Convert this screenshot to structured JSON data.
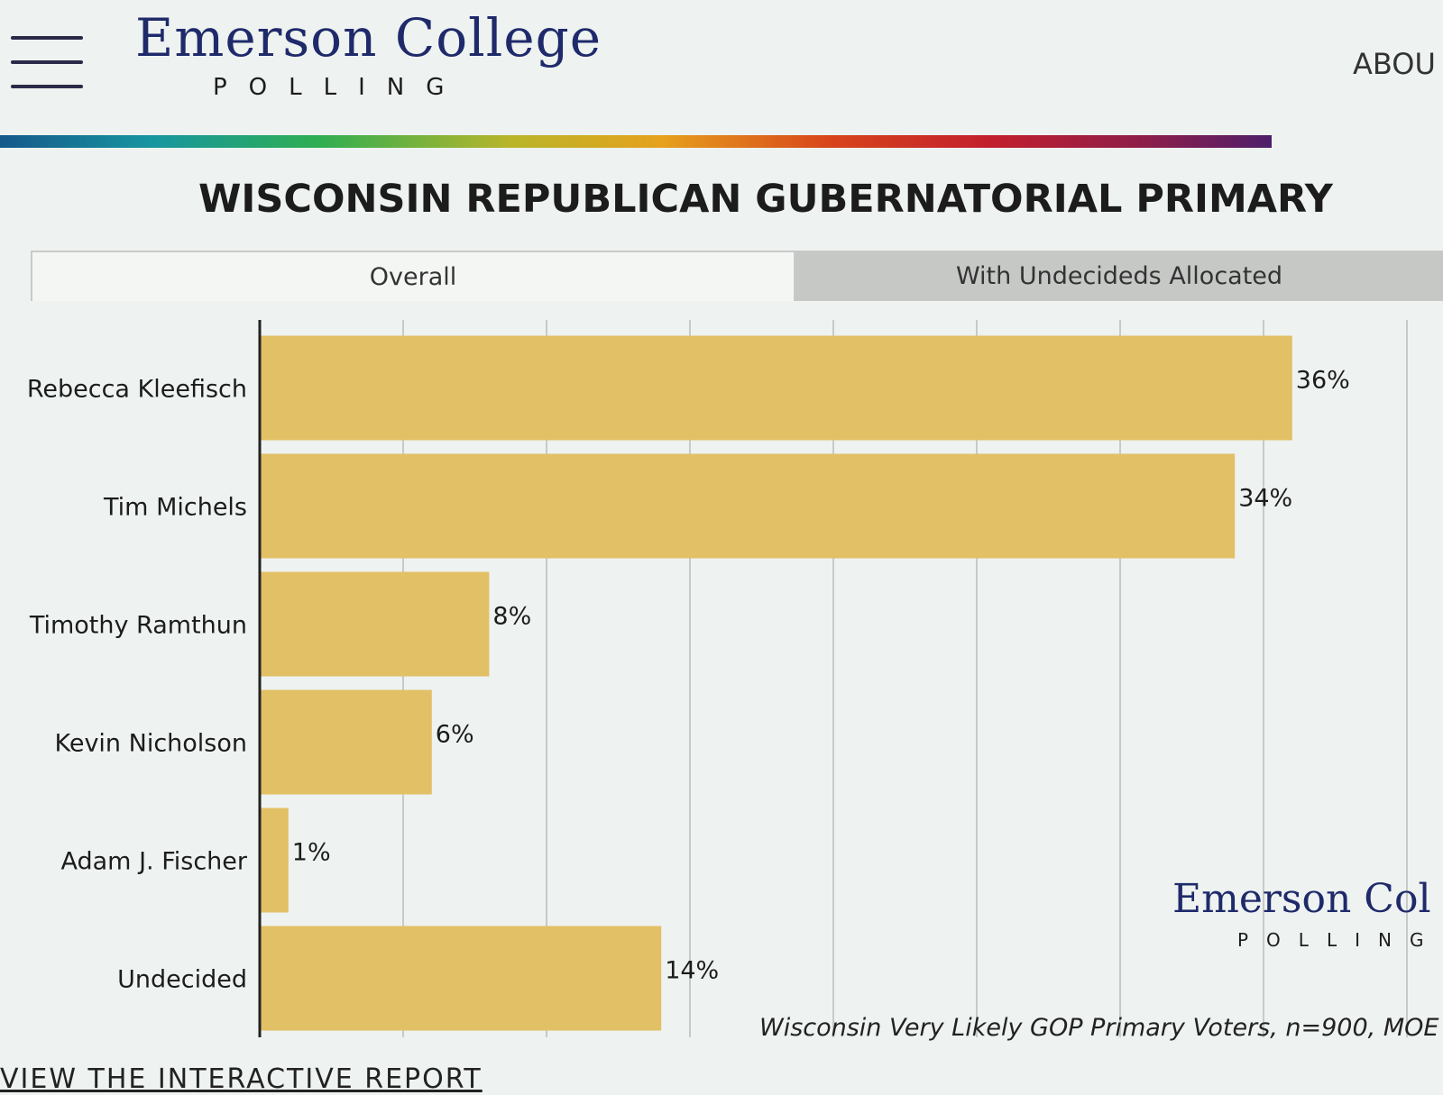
{
  "header": {
    "brand_name": "Emerson College",
    "brand_sub": "POLLING",
    "about_label": "ABOU",
    "menu_icon": "hamburger-menu-icon"
  },
  "tabs": {
    "overall": "Overall",
    "allocated": "With Undecideds Allocated",
    "active": "overall"
  },
  "footer": {
    "brand_name": "Emerson Col",
    "brand_sub": "POLLING",
    "sample_note": "Wisconsin Very Likely GOP Primary Voters, n=900, MOE",
    "report_link": "VIEW THE INTERACTIVE REPORT"
  },
  "colors": {
    "bar": "#e2c066",
    "brand": "#1f2a6b",
    "grid": "#c7cac8"
  },
  "chart_data": {
    "type": "bar",
    "orientation": "horizontal",
    "title": "WISCONSIN REPUBLICAN GUBERNATORIAL PRIMARY",
    "categories": [
      "Rebecca Kleefisch",
      "Tim Michels",
      "Timothy Ramthun",
      "Kevin Nicholson",
      "Adam J. Fischer",
      "Undecided"
    ],
    "values": [
      36,
      34,
      8,
      6,
      1,
      14
    ],
    "value_labels": [
      "36%",
      "34%",
      "8%",
      "6%",
      "1%",
      "14%"
    ],
    "xlim": [
      0,
      40
    ],
    "grid": true,
    "grid_step": 5
  }
}
